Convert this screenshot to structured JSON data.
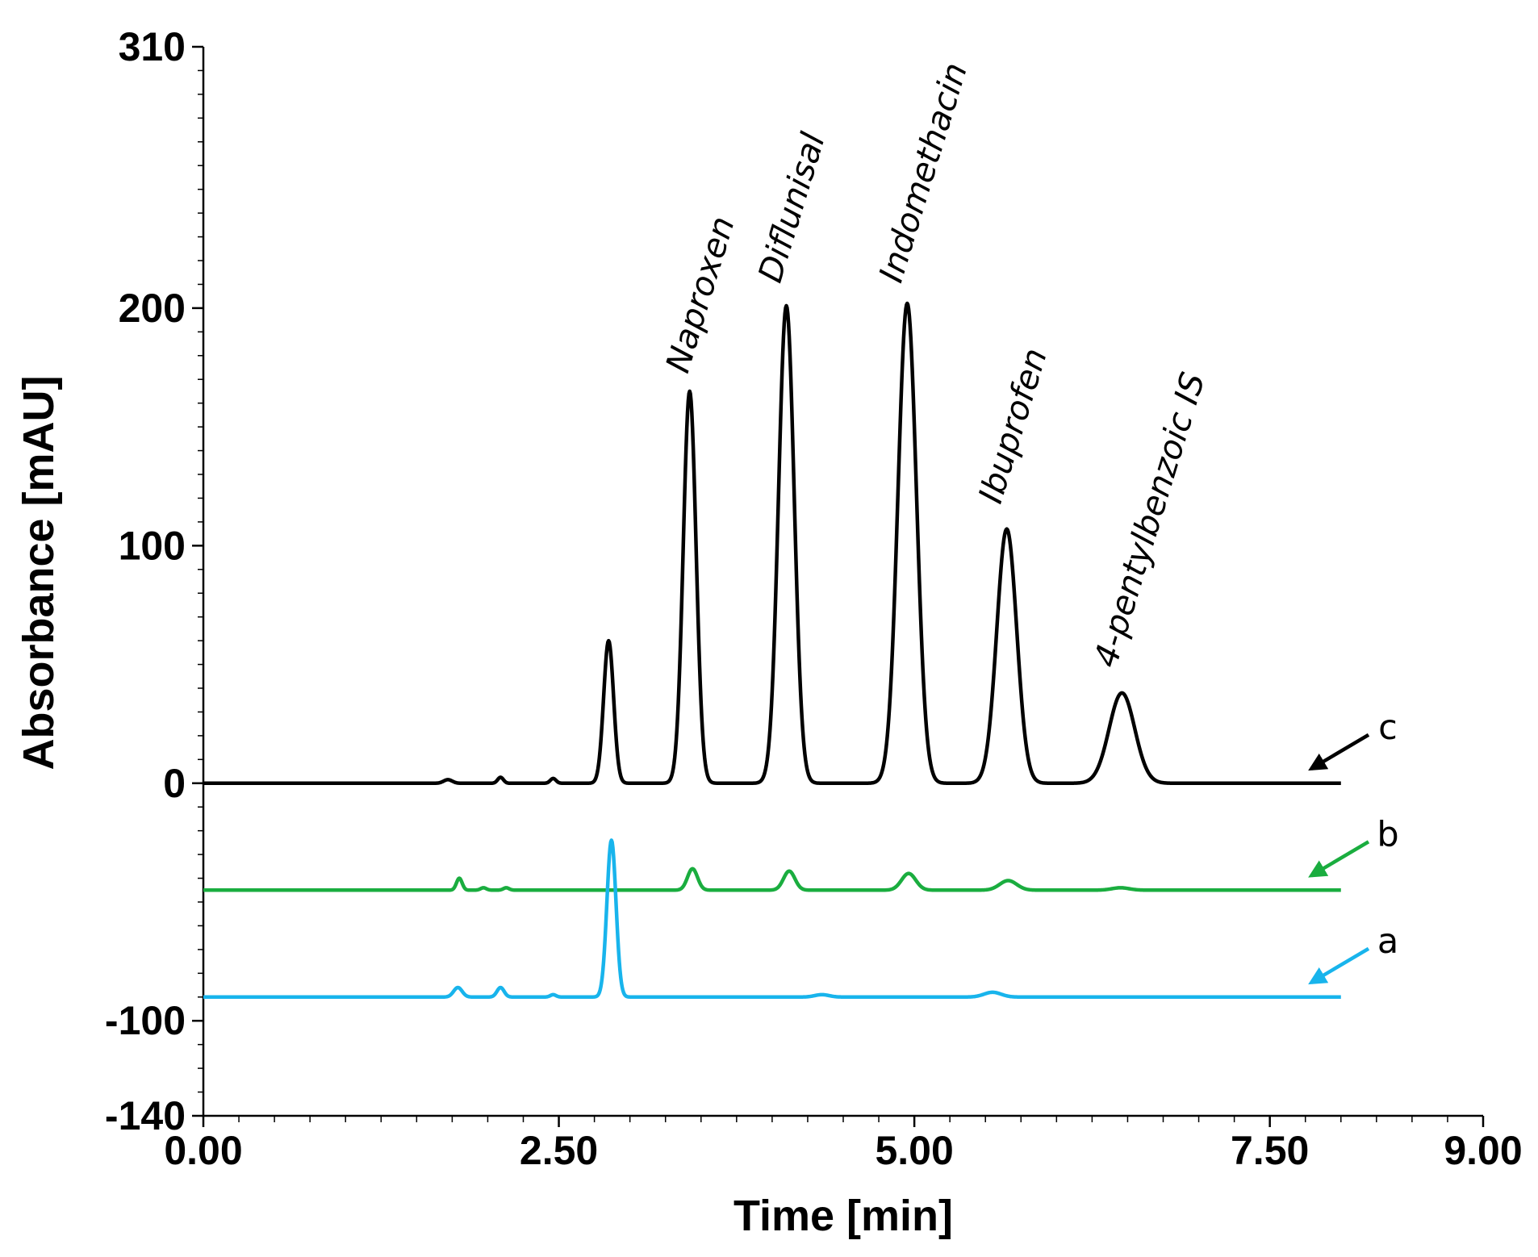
{
  "chart_data": {
    "type": "line",
    "title": "",
    "xlabel": "Time [min]",
    "ylabel": "Absorbance [mAU]",
    "xlim": [
      0,
      9
    ],
    "ylim": [
      -140,
      310
    ],
    "x_ticks": [
      {
        "value": 0,
        "label": "0.00"
      },
      {
        "value": 2.5,
        "label": "2.50"
      },
      {
        "value": 5,
        "label": "5.00"
      },
      {
        "value": 7.5,
        "label": "7.50"
      },
      {
        "value": 9,
        "label": "9.00"
      }
    ],
    "y_ticks": [
      {
        "value": 310,
        "label": "310"
      },
      {
        "value": 200,
        "label": "200"
      },
      {
        "value": 100,
        "label": "100"
      },
      {
        "value": 0,
        "label": "0"
      },
      {
        "value": -100,
        "label": "-100"
      },
      {
        "value": -140,
        "label": "-140"
      }
    ],
    "series": [
      {
        "name": "c",
        "color": "#000000",
        "baseline": 0,
        "x_end": 8.0,
        "peaks": [
          {
            "t": 1.72,
            "h": 1.5,
            "w": 0.03
          },
          {
            "t": 2.09,
            "h": 2.5,
            "w": 0.02
          },
          {
            "t": 2.46,
            "h": 2,
            "w": 0.02
          },
          {
            "t": 2.85,
            "h": 60,
            "w": 0.035
          },
          {
            "t": 3.42,
            "h": 165,
            "w": 0.045
          },
          {
            "t": 4.1,
            "h": 201,
            "w": 0.055
          },
          {
            "t": 4.95,
            "h": 202,
            "w": 0.065
          },
          {
            "t": 5.65,
            "h": 107,
            "w": 0.07
          },
          {
            "t": 6.46,
            "h": 38,
            "w": 0.09
          }
        ]
      },
      {
        "name": "b",
        "color": "#1aad3f",
        "baseline": -45,
        "x_end": 8.0,
        "peaks": [
          {
            "t": 1.8,
            "h": 5,
            "w": 0.02
          },
          {
            "t": 1.97,
            "h": 1,
            "w": 0.02
          },
          {
            "t": 2.13,
            "h": 1,
            "w": 0.02
          },
          {
            "t": 3.44,
            "h": 9,
            "w": 0.035
          },
          {
            "t": 4.12,
            "h": 8,
            "w": 0.04
          },
          {
            "t": 4.96,
            "h": 7,
            "w": 0.05
          },
          {
            "t": 5.66,
            "h": 4,
            "w": 0.06
          },
          {
            "t": 6.45,
            "h": 1,
            "w": 0.06
          }
        ]
      },
      {
        "name": "a",
        "color": "#18b4ec",
        "baseline": -90,
        "x_end": 8.0,
        "peaks": [
          {
            "t": 1.79,
            "h": 4,
            "w": 0.03
          },
          {
            "t": 2.09,
            "h": 4,
            "w": 0.025
          },
          {
            "t": 2.46,
            "h": 1,
            "w": 0.02
          },
          {
            "t": 2.87,
            "h": 66,
            "w": 0.032
          },
          {
            "t": 4.35,
            "h": 1,
            "w": 0.05
          },
          {
            "t": 5.55,
            "h": 2,
            "w": 0.06
          }
        ]
      }
    ],
    "annotations": [
      {
        "text": "Naproxen",
        "x": 3.45,
        "y": 172
      },
      {
        "text": "Diflunisal",
        "x": 4.1,
        "y": 210
      },
      {
        "text": "Indomethacin",
        "x": 4.95,
        "y": 210
      },
      {
        "text": "Ibuprofen",
        "x": 5.65,
        "y": 117
      },
      {
        "text": "4-pentylbenzoic IS",
        "x": 6.46,
        "y": 48
      }
    ],
    "trace_labels": [
      {
        "text": "c",
        "series": "c"
      },
      {
        "text": "b",
        "series": "b"
      },
      {
        "text": "a",
        "series": "a"
      }
    ]
  }
}
